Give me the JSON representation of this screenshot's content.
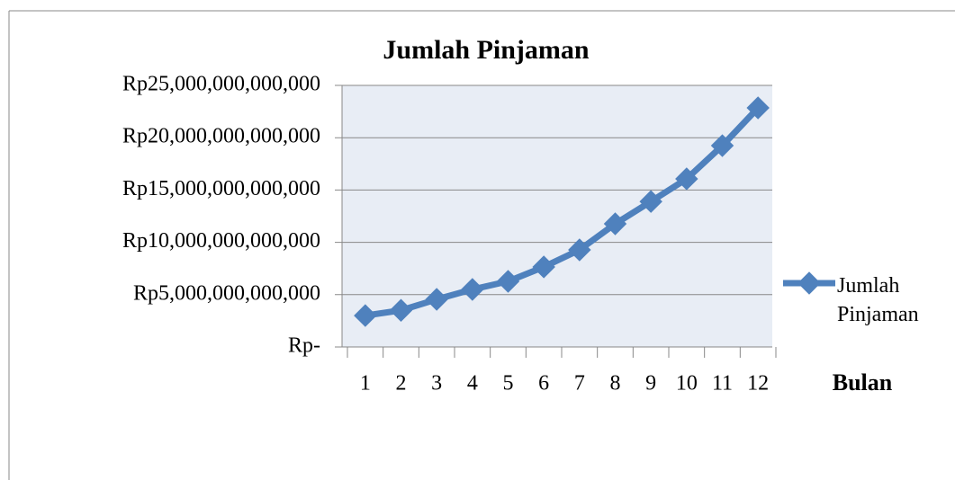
{
  "chart_data": {
    "type": "line",
    "title": "Jumlah Pinjaman",
    "x_label": "Bulan",
    "categories": [
      "1",
      "2",
      "3",
      "4",
      "5",
      "6",
      "7",
      "8",
      "9",
      "10",
      "11",
      "12"
    ],
    "series": [
      {
        "name": "Jumlah Pinjaman",
        "color": "#4f81bd",
        "values": [
          3000000000000,
          3500000000000,
          4550000000000,
          5500000000000,
          6270000000000,
          7650000000000,
          9280000000000,
          11770000000000,
          13900000000000,
          16070000000000,
          19240000000000,
          22850000000000
        ]
      }
    ],
    "ylim": [
      0,
      25000000000000
    ],
    "yticks": [
      {
        "value": 0,
        "label": "Rp-"
      },
      {
        "value": 5000000000000,
        "label": "Rp5,000,000,000,000"
      },
      {
        "value": 10000000000000,
        "label": "Rp10,000,000,000,000"
      },
      {
        "value": 15000000000000,
        "label": "Rp15,000,000,000,000"
      },
      {
        "value": 20000000000000,
        "label": "Rp20,000,000,000,000"
      },
      {
        "value": 25000000000000,
        "label": "Rp25,000,000,000,000"
      }
    ],
    "grid": true,
    "legend": "right"
  }
}
